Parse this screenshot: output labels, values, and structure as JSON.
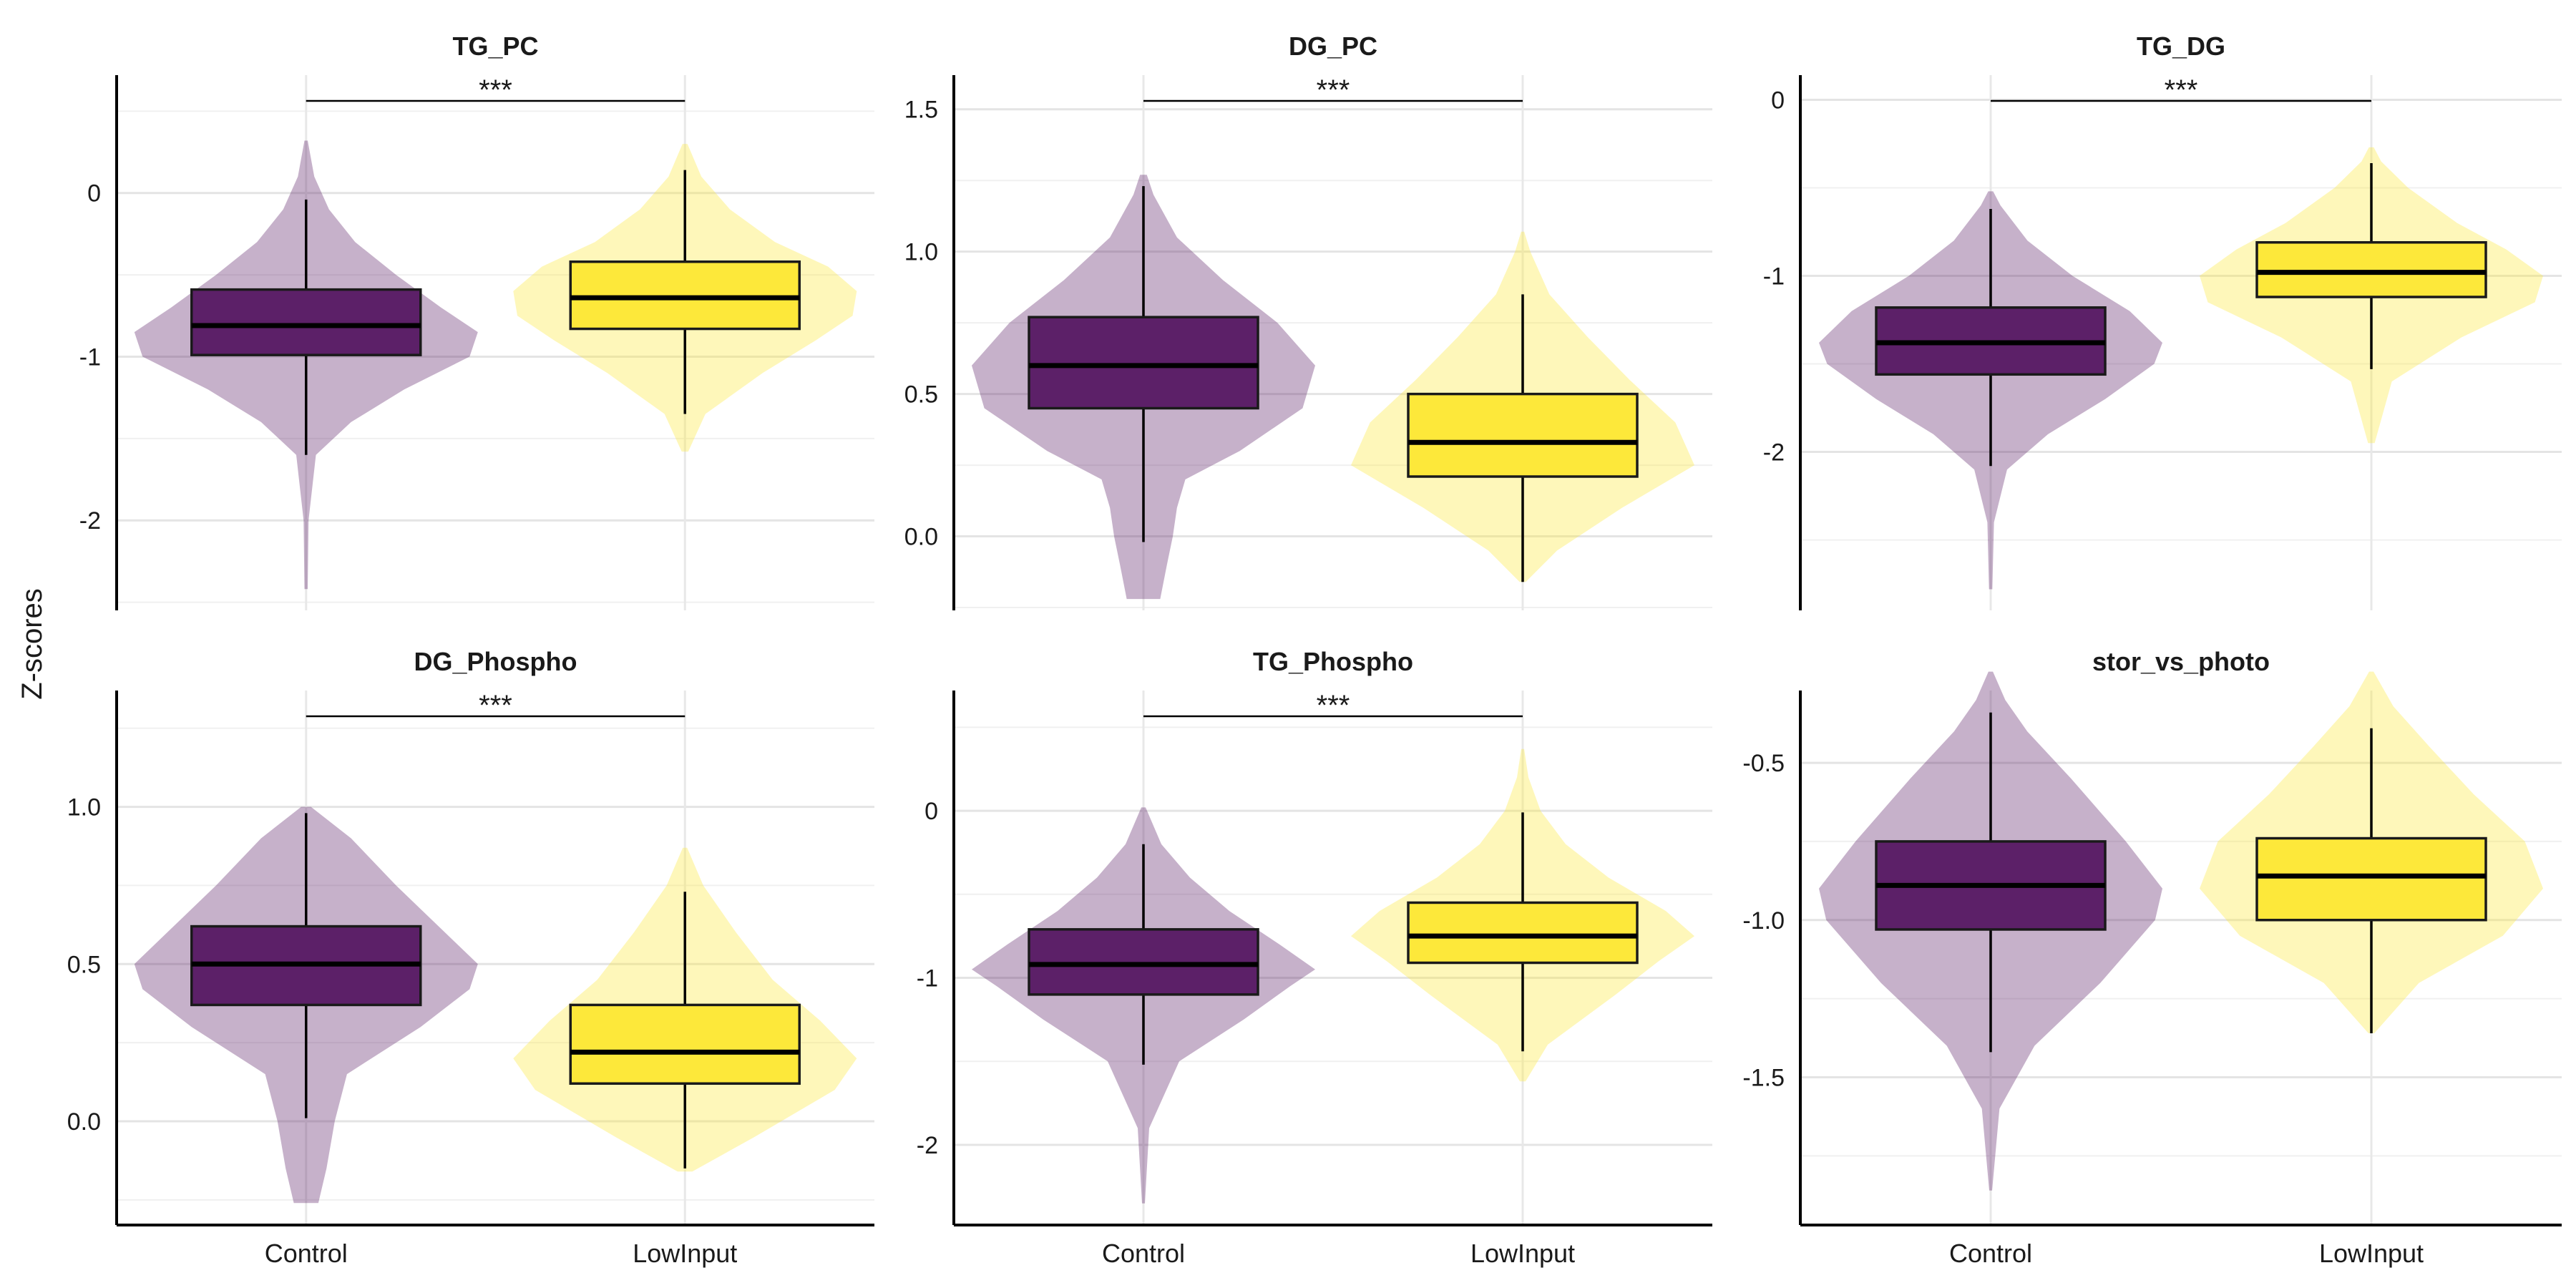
{
  "ylabel": "Z-scores",
  "colors": {
    "control": "#5C2068",
    "lowinput": "#FDE83A"
  },
  "chart_data": [
    {
      "type": "violin+box",
      "title": "TG_PC",
      "categories": [
        "Control",
        "LowInput"
      ],
      "ylim": [
        -2.55,
        0.72
      ],
      "yticks": [
        -2,
        -1,
        0
      ],
      "ytick_labels": [
        "-2",
        "-1",
        "0"
      ],
      "significance": "***",
      "series": [
        {
          "name": "Control",
          "min": -1.6,
          "q1": -0.99,
          "median": -0.81,
          "q3": -0.59,
          "max": -0.04,
          "vmin": -2.42,
          "vmax": 0.32,
          "density": [
            [
              -2.42,
              2
            ],
            [
              -2.0,
              3
            ],
            [
              -1.6,
              12
            ],
            [
              -1.4,
              55
            ],
            [
              -1.2,
              120
            ],
            [
              -1.0,
              200
            ],
            [
              -0.85,
              210
            ],
            [
              -0.7,
              165
            ],
            [
              -0.5,
              110
            ],
            [
              -0.3,
              60
            ],
            [
              -0.1,
              28
            ],
            [
              0.1,
              10
            ],
            [
              0.32,
              2
            ]
          ]
        },
        {
          "name": "LowInput",
          "min": -1.35,
          "q1": -0.83,
          "median": -0.64,
          "q3": -0.42,
          "max": 0.14,
          "vmin": -1.58,
          "vmax": 0.3,
          "density": [
            [
              -1.58,
              4
            ],
            [
              -1.35,
              25
            ],
            [
              -1.1,
              95
            ],
            [
              -0.9,
              160
            ],
            [
              -0.75,
              205
            ],
            [
              -0.6,
              210
            ],
            [
              -0.45,
              175
            ],
            [
              -0.3,
              110
            ],
            [
              -0.1,
              55
            ],
            [
              0.1,
              20
            ],
            [
              0.3,
              3
            ]
          ]
        }
      ]
    },
    {
      "type": "violin+box",
      "title": "DG_PC",
      "categories": [
        "Control",
        "LowInput"
      ],
      "ylim": [
        -0.26,
        1.62
      ],
      "yticks": [
        0.0,
        0.5,
        1.0,
        1.5
      ],
      "ytick_labels": [
        "0.0",
        "0.5",
        "1.0",
        "1.5"
      ],
      "significance": "***",
      "series": [
        {
          "name": "Control",
          "min": -0.02,
          "q1": 0.45,
          "median": 0.6,
          "q3": 0.77,
          "max": 1.23,
          "vmin": -0.22,
          "vmax": 1.27,
          "density": [
            [
              -0.22,
              20
            ],
            [
              -0.1,
              28
            ],
            [
              0.0,
              35
            ],
            [
              0.1,
              40
            ],
            [
              0.2,
              50
            ],
            [
              0.3,
              115
            ],
            [
              0.45,
              190
            ],
            [
              0.6,
              205
            ],
            [
              0.75,
              160
            ],
            [
              0.9,
              95
            ],
            [
              1.05,
              40
            ],
            [
              1.2,
              12
            ],
            [
              1.27,
              4
            ]
          ]
        },
        {
          "name": "LowInput",
          "min": -0.16,
          "q1": 0.21,
          "median": 0.33,
          "q3": 0.5,
          "max": 0.85,
          "vmin": -0.16,
          "vmax": 1.07,
          "density": [
            [
              -0.16,
              4
            ],
            [
              -0.05,
              45
            ],
            [
              0.1,
              130
            ],
            [
              0.25,
              225
            ],
            [
              0.4,
              200
            ],
            [
              0.55,
              140
            ],
            [
              0.7,
              85
            ],
            [
              0.85,
              35
            ],
            [
              1.0,
              10
            ],
            [
              1.07,
              2
            ]
          ]
        }
      ]
    },
    {
      "type": "violin+box",
      "title": "TG_DG",
      "categories": [
        "Control",
        "LowInput"
      ],
      "ylim": [
        -2.9,
        0.14
      ],
      "yticks": [
        -2,
        -1,
        0
      ],
      "ytick_labels": [
        "-2",
        "-1",
        "0"
      ],
      "significance": "***",
      "series": [
        {
          "name": "Control",
          "min": -2.08,
          "q1": -1.56,
          "median": -1.38,
          "q3": -1.18,
          "max": -0.62,
          "vmin": -2.78,
          "vmax": -0.52,
          "density": [
            [
              -2.78,
              2
            ],
            [
              -2.4,
              4
            ],
            [
              -2.1,
              20
            ],
            [
              -1.9,
              70
            ],
            [
              -1.7,
              140
            ],
            [
              -1.5,
              200
            ],
            [
              -1.38,
              210
            ],
            [
              -1.2,
              170
            ],
            [
              -1.0,
              100
            ],
            [
              -0.8,
              45
            ],
            [
              -0.6,
              12
            ],
            [
              -0.52,
              3
            ]
          ]
        },
        {
          "name": "LowInput",
          "min": -1.53,
          "q1": -1.12,
          "median": -0.98,
          "q3": -0.81,
          "max": -0.36,
          "vmin": -1.95,
          "vmax": -0.27,
          "density": [
            [
              -1.95,
              4
            ],
            [
              -1.6,
              25
            ],
            [
              -1.35,
              110
            ],
            [
              -1.15,
              200
            ],
            [
              -1.0,
              210
            ],
            [
              -0.85,
              165
            ],
            [
              -0.7,
              105
            ],
            [
              -0.5,
              45
            ],
            [
              -0.35,
              12
            ],
            [
              -0.27,
              3
            ]
          ]
        }
      ]
    },
    {
      "type": "violin+box",
      "title": "DG_Phospho",
      "categories": [
        "Control",
        "LowInput"
      ],
      "ylim": [
        -0.33,
        1.37
      ],
      "yticks": [
        0.0,
        0.5,
        1.0
      ],
      "ytick_labels": [
        "0.0",
        "0.5",
        "1.0"
      ],
      "significance": "***",
      "series": [
        {
          "name": "Control",
          "min": 0.01,
          "q1": 0.37,
          "median": 0.5,
          "q3": 0.62,
          "max": 0.98,
          "vmin": -0.26,
          "vmax": 1.0,
          "density": [
            [
              -0.26,
              15
            ],
            [
              -0.15,
              25
            ],
            [
              0.0,
              35
            ],
            [
              0.15,
              50
            ],
            [
              0.3,
              140
            ],
            [
              0.42,
              200
            ],
            [
              0.5,
              210
            ],
            [
              0.6,
              170
            ],
            [
              0.75,
              110
            ],
            [
              0.9,
              55
            ],
            [
              1.0,
              6
            ]
          ]
        },
        {
          "name": "LowInput",
          "min": -0.15,
          "q1": 0.12,
          "median": 0.22,
          "q3": 0.37,
          "max": 0.73,
          "vmin": -0.16,
          "vmax": 0.87,
          "density": [
            [
              -0.16,
              10
            ],
            [
              -0.05,
              95
            ],
            [
              0.1,
              205
            ],
            [
              0.2,
              235
            ],
            [
              0.32,
              185
            ],
            [
              0.45,
              120
            ],
            [
              0.6,
              70
            ],
            [
              0.75,
              25
            ],
            [
              0.87,
              3
            ]
          ]
        }
      ]
    },
    {
      "type": "violin+box",
      "title": "TG_Phospho",
      "categories": [
        "Control",
        "LowInput"
      ],
      "ylim": [
        -2.48,
        0.72
      ],
      "yticks": [
        -2,
        -1,
        0
      ],
      "ytick_labels": [
        "-2",
        "-1",
        "0"
      ],
      "significance": "***",
      "series": [
        {
          "name": "Control",
          "min": -1.52,
          "q1": -1.1,
          "median": -0.92,
          "q3": -0.71,
          "max": -0.2,
          "vmin": -2.35,
          "vmax": 0.02,
          "density": [
            [
              -2.35,
              2
            ],
            [
              -1.9,
              8
            ],
            [
              -1.5,
              50
            ],
            [
              -1.25,
              140
            ],
            [
              -1.05,
              205
            ],
            [
              -0.95,
              240
            ],
            [
              -0.8,
              190
            ],
            [
              -0.6,
              120
            ],
            [
              -0.4,
              65
            ],
            [
              -0.2,
              25
            ],
            [
              0.02,
              3
            ]
          ]
        },
        {
          "name": "LowInput",
          "min": -1.44,
          "q1": -0.91,
          "median": -0.75,
          "q3": -0.55,
          "max": -0.01,
          "vmin": -1.62,
          "vmax": 0.37,
          "density": [
            [
              -1.62,
              4
            ],
            [
              -1.4,
              35
            ],
            [
              -1.1,
              130
            ],
            [
              -0.9,
              190
            ],
            [
              -0.75,
              240
            ],
            [
              -0.6,
              200
            ],
            [
              -0.4,
              120
            ],
            [
              -0.2,
              60
            ],
            [
              0.0,
              25
            ],
            [
              0.2,
              8
            ],
            [
              0.37,
              2
            ]
          ]
        }
      ]
    },
    {
      "type": "violin+box",
      "title": "stor_vs_photo",
      "categories": [
        "Control",
        "LowInput"
      ],
      "ylim": [
        -1.97,
        -0.27
      ],
      "yticks": [
        -1.5,
        -1.0,
        -0.5
      ],
      "ytick_labels": [
        "-1.5",
        "-1.0",
        "-0.5"
      ],
      "significance": "",
      "series": [
        {
          "name": "Control",
          "min": -1.42,
          "q1": -1.03,
          "median": -0.89,
          "q3": -0.75,
          "max": -0.34,
          "vmin": -1.86,
          "vmax": -0.21,
          "density": [
            [
              -1.86,
              2
            ],
            [
              -1.6,
              12
            ],
            [
              -1.4,
              60
            ],
            [
              -1.2,
              150
            ],
            [
              -1.0,
              225
            ],
            [
              -0.9,
              235
            ],
            [
              -0.75,
              185
            ],
            [
              -0.55,
              110
            ],
            [
              -0.4,
              50
            ],
            [
              -0.3,
              20
            ],
            [
              -0.21,
              3
            ]
          ]
        },
        {
          "name": "LowInput",
          "min": -1.36,
          "q1": -1.0,
          "median": -0.86,
          "q3": -0.74,
          "max": -0.39,
          "vmin": -1.36,
          "vmax": -0.21,
          "density": [
            [
              -1.36,
              4
            ],
            [
              -1.2,
              65
            ],
            [
              -1.05,
              180
            ],
            [
              -0.9,
              235
            ],
            [
              -0.75,
              210
            ],
            [
              -0.6,
              140
            ],
            [
              -0.45,
              80
            ],
            [
              -0.32,
              30
            ],
            [
              -0.21,
              3
            ]
          ]
        }
      ]
    }
  ]
}
